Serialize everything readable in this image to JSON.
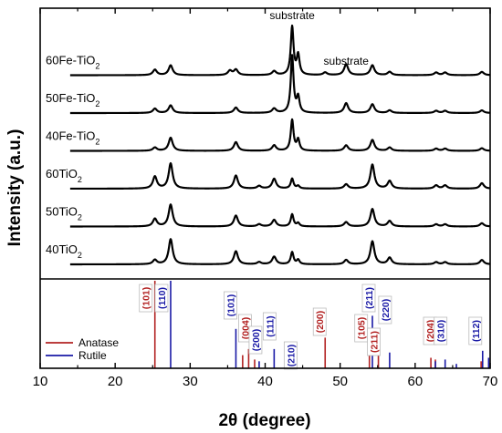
{
  "chart_data": {
    "type": "line",
    "xlabel": "2θ (degree)",
    "ylabel": "Intensity (a.u.)",
    "xlim": [
      10,
      70
    ],
    "x_ticks": [
      "10",
      "20",
      "30",
      "40",
      "50",
      "60",
      "70"
    ],
    "grid": false,
    "series": [
      {
        "name": "60Fe-TiO",
        "sub": "2",
        "baseline_rank": 6,
        "peaks": [
          [
            25.3,
            0.25
          ],
          [
            27.4,
            0.45
          ],
          [
            35.3,
            0.2
          ],
          [
            36.1,
            0.25
          ],
          [
            41.2,
            0.18
          ],
          [
            43.6,
            2.2
          ],
          [
            44.4,
            0.9
          ],
          [
            48.0,
            0.12
          ],
          [
            50.8,
            0.5
          ],
          [
            54.3,
            0.45
          ],
          [
            56.6,
            0.15
          ],
          [
            62.8,
            0.12
          ],
          [
            64.0,
            0.12
          ],
          [
            68.9,
            0.15
          ]
        ]
      },
      {
        "name": "50Fe-TiO",
        "sub": "2",
        "baseline_rank": 5,
        "peaks": [
          [
            25.3,
            0.2
          ],
          [
            27.4,
            0.35
          ],
          [
            36.1,
            0.25
          ],
          [
            41.2,
            0.2
          ],
          [
            43.6,
            2.6
          ],
          [
            44.4,
            0.7
          ],
          [
            50.8,
            0.45
          ],
          [
            54.3,
            0.4
          ],
          [
            56.6,
            0.12
          ],
          [
            62.8,
            0.1
          ],
          [
            64.0,
            0.1
          ],
          [
            68.9,
            0.12
          ]
        ]
      },
      {
        "name": "40Fe-TiO",
        "sub": "2",
        "baseline_rank": 4,
        "peaks": [
          [
            25.3,
            0.15
          ],
          [
            27.4,
            0.6
          ],
          [
            36.1,
            0.4
          ],
          [
            41.2,
            0.25
          ],
          [
            43.6,
            1.4
          ],
          [
            44.4,
            0.5
          ],
          [
            50.8,
            0.25
          ],
          [
            54.3,
            0.5
          ],
          [
            56.6,
            0.15
          ],
          [
            62.8,
            0.1
          ],
          [
            64.0,
            0.1
          ],
          [
            68.9,
            0.12
          ]
        ]
      },
      {
        "name": "60TiO",
        "sub": "2",
        "baseline_rank": 3,
        "peaks": [
          [
            25.3,
            0.55
          ],
          [
            27.4,
            1.15
          ],
          [
            36.1,
            0.6
          ],
          [
            39.2,
            0.12
          ],
          [
            41.2,
            0.45
          ],
          [
            43.6,
            0.45
          ],
          [
            44.4,
            0.12
          ],
          [
            50.8,
            0.2
          ],
          [
            54.3,
            1.1
          ],
          [
            56.6,
            0.35
          ],
          [
            62.8,
            0.15
          ],
          [
            64.0,
            0.15
          ],
          [
            68.9,
            0.25
          ]
        ]
      },
      {
        "name": "50TiO",
        "sub": "2",
        "baseline_rank": 2,
        "peaks": [
          [
            25.3,
            0.35
          ],
          [
            27.4,
            1.0
          ],
          [
            36.1,
            0.5
          ],
          [
            39.2,
            0.1
          ],
          [
            41.2,
            0.3
          ],
          [
            43.6,
            0.55
          ],
          [
            44.4,
            0.15
          ],
          [
            50.8,
            0.2
          ],
          [
            54.3,
            0.8
          ],
          [
            56.6,
            0.25
          ],
          [
            62.8,
            0.1
          ],
          [
            64.0,
            0.1
          ],
          [
            68.9,
            0.15
          ]
        ]
      },
      {
        "name": "40TiO",
        "sub": "2",
        "baseline_rank": 1,
        "peaks": [
          [
            25.3,
            0.2
          ],
          [
            27.4,
            1.15
          ],
          [
            36.1,
            0.6
          ],
          [
            39.2,
            0.1
          ],
          [
            41.2,
            0.35
          ],
          [
            43.6,
            0.55
          ],
          [
            44.4,
            0.2
          ],
          [
            50.8,
            0.2
          ],
          [
            54.3,
            1.05
          ],
          [
            56.6,
            0.3
          ],
          [
            62.8,
            0.1
          ],
          [
            64.0,
            0.1
          ],
          [
            68.9,
            0.2
          ]
        ]
      }
    ],
    "annotations": [
      {
        "text": "substrate",
        "x": 43.6
      },
      {
        "text": "substrate",
        "x": 50.8
      }
    ],
    "reference_lines": {
      "anatase": {
        "label": "Anatase",
        "color": "#b22222",
        "lines": [
          [
            25.3,
            1.0
          ],
          [
            37.0,
            0.15
          ],
          [
            37.8,
            0.22
          ],
          [
            38.6,
            0.1
          ],
          [
            48.0,
            0.35
          ],
          [
            53.9,
            0.2
          ],
          [
            55.1,
            0.2
          ],
          [
            62.1,
            0.12
          ],
          [
            62.7,
            0.1
          ],
          [
            68.8,
            0.08
          ],
          [
            70.3,
            0.08
          ]
        ]
      },
      "rutile": {
        "label": "Rutile",
        "color": "#1a1aa6",
        "lines": [
          [
            27.4,
            1.0
          ],
          [
            36.1,
            0.45
          ],
          [
            39.2,
            0.08
          ],
          [
            41.2,
            0.22
          ],
          [
            44.0,
            0.08
          ],
          [
            54.3,
            0.6
          ],
          [
            56.6,
            0.18
          ],
          [
            62.7,
            0.08
          ],
          [
            64.0,
            0.1
          ],
          [
            65.5,
            0.05
          ],
          [
            69.0,
            0.2
          ],
          [
            69.8,
            0.12
          ]
        ]
      }
    },
    "reference_indices": [
      {
        "text": "(101)",
        "x": 25.3,
        "phase": "anatase"
      },
      {
        "text": "(110)",
        "x": 27.4,
        "phase": "rutile"
      },
      {
        "text": "(101)",
        "x": 36.1,
        "phase": "rutile"
      },
      {
        "text": "(004)",
        "x": 37.8,
        "phase": "anatase"
      },
      {
        "text": "(200)",
        "x": 39.2,
        "phase": "rutile"
      },
      {
        "text": "(111)",
        "x": 41.2,
        "phase": "rutile"
      },
      {
        "text": "(210)",
        "x": 44.0,
        "phase": "rutile"
      },
      {
        "text": "(200)",
        "x": 48.0,
        "phase": "anatase"
      },
      {
        "text": "(105)",
        "x": 53.9,
        "phase": "anatase"
      },
      {
        "text": "(211)",
        "x": 54.3,
        "phase": "rutile"
      },
      {
        "text": "(211)",
        "x": 55.1,
        "phase": "anatase"
      },
      {
        "text": "(220)",
        "x": 56.6,
        "phase": "rutile"
      },
      {
        "text": "(204)",
        "x": 62.7,
        "phase": "anatase"
      },
      {
        "text": "(310)",
        "x": 64.0,
        "phase": "rutile"
      },
      {
        "text": "(112)",
        "x": 69.0,
        "phase": "rutile"
      }
    ],
    "legend": {
      "placement": "bottom-left",
      "entries": [
        "Anatase",
        "Rutile"
      ]
    }
  }
}
